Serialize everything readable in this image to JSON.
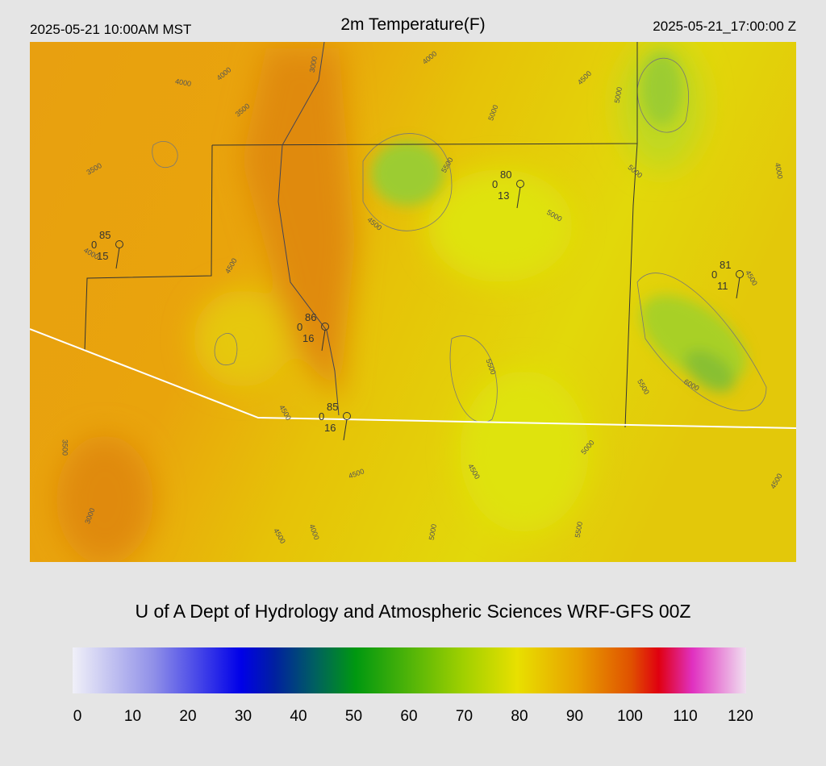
{
  "header": {
    "local_time": "2025-05-21 10:00AM MST",
    "title": "2m Temperature(F)",
    "utc_time": "2025-05-21_17:00:00 Z"
  },
  "map": {
    "contour_labels": [
      "3000",
      "4000",
      "4000",
      "4000",
      "3500",
      "4500",
      "5000",
      "5000",
      "3500",
      "5500",
      "5000",
      "4000",
      "4500",
      "5000",
      "4000",
      "4500",
      "4500",
      "5500",
      "5500",
      "6000",
      "4500",
      "3500",
      "5000",
      "4500",
      "4500",
      "4500",
      "3000",
      "4000",
      "4500",
      "5000",
      "5500"
    ],
    "stations": [
      {
        "temp": "85",
        "precip": "0",
        "dew": "15"
      },
      {
        "temp": "80",
        "precip": "0",
        "dew": "13"
      },
      {
        "temp": "81",
        "precip": "0",
        "dew": "11"
      },
      {
        "temp": "86",
        "precip": "0",
        "dew": "16"
      },
      {
        "temp": "85",
        "precip": "0",
        "dew": "16"
      }
    ]
  },
  "credit": "U of A Dept of Hydrology and Atmospheric Sciences WRF-GFS 00Z",
  "colorbar": {
    "range": [
      0,
      120
    ],
    "ticks": [
      0,
      10,
      20,
      30,
      40,
      50,
      60,
      70,
      80,
      90,
      100,
      110,
      120
    ]
  }
}
